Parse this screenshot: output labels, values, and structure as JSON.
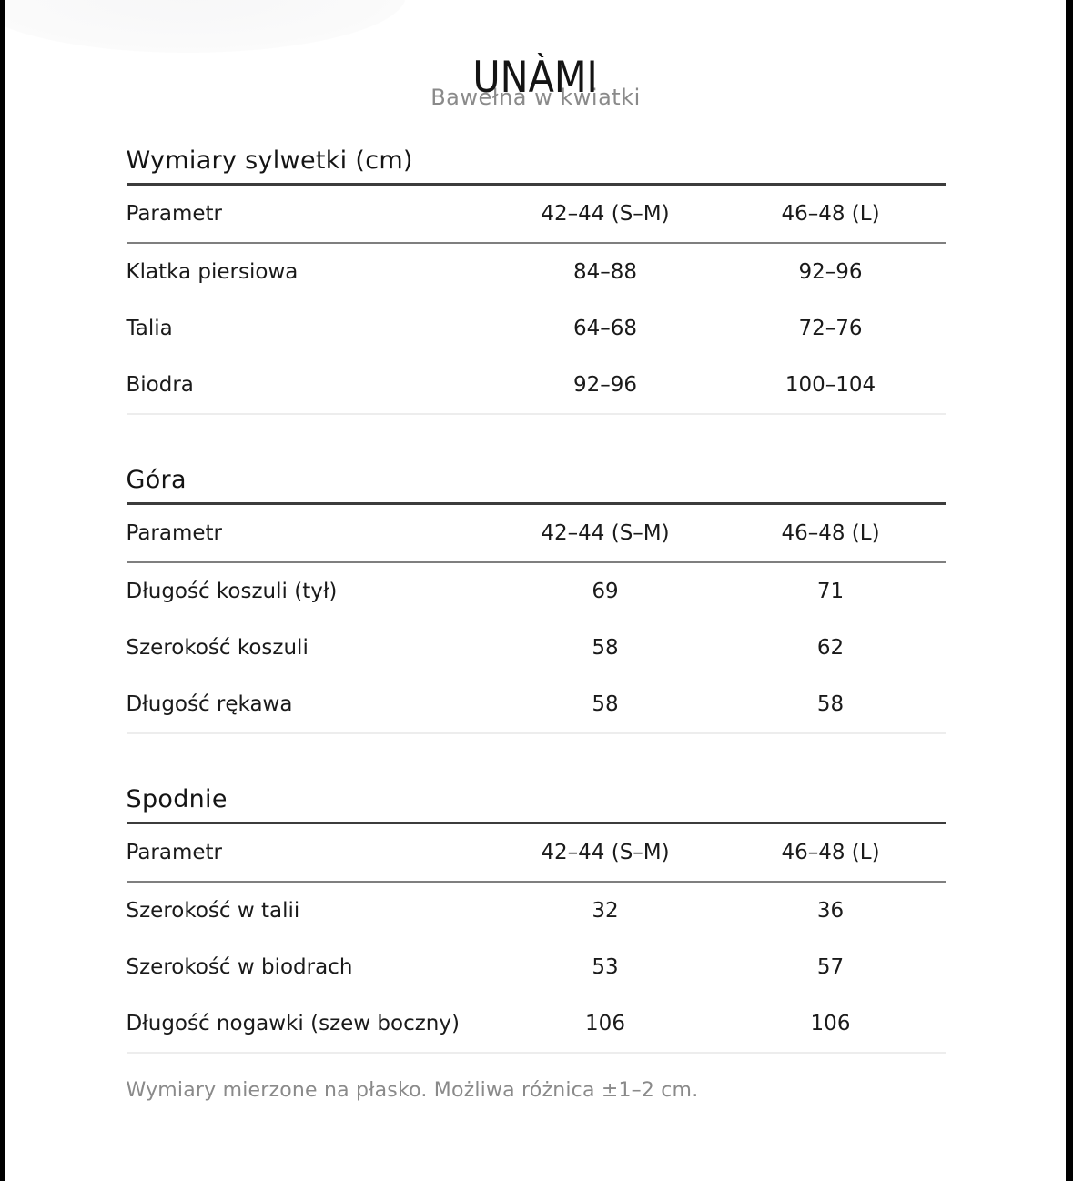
{
  "header": {
    "brand": "UNÀMI",
    "subtitle": "Bawełna w kwiatki"
  },
  "columns": {
    "param": "Parametr",
    "size_sm": "42–44 (S–M)",
    "size_l": "46–48 (L)"
  },
  "sections": [
    {
      "title": "Wymiary sylwetki (cm)",
      "rows": [
        {
          "label": "Klatka piersiowa",
          "sm": "84–88",
          "l": "92–96"
        },
        {
          "label": "Talia",
          "sm": "64–68",
          "l": "72–76"
        },
        {
          "label": "Biodra",
          "sm": "92–96",
          "l": "100–104"
        }
      ]
    },
    {
      "title": "Góra",
      "rows": [
        {
          "label": "Długość koszuli (tył)",
          "sm": "69",
          "l": "71"
        },
        {
          "label": "Szerokość koszuli",
          "sm": "58",
          "l": "62"
        },
        {
          "label": "Długość rękawa",
          "sm": "58",
          "l": "58"
        }
      ]
    },
    {
      "title": "Spodnie",
      "rows": [
        {
          "label": "Szerokość w talii",
          "sm": "32",
          "l": "36"
        },
        {
          "label": "Szerokość w biodrach",
          "sm": "53",
          "l": "57"
        },
        {
          "label": "Długość nogawki (szew boczny)",
          "sm": "106",
          "l": "106"
        }
      ]
    }
  ],
  "footer": {
    "note": "Wymiary mierzone na płasko. Możliwa różnica ±1–2 cm."
  },
  "colors": {
    "text": "#1a1a1a",
    "muted": "#8a8a8a",
    "rule_dark": "#3c3c3c",
    "rule_mid": "#7f7f7f",
    "rule_light": "#ededed",
    "frame": "#000000"
  }
}
